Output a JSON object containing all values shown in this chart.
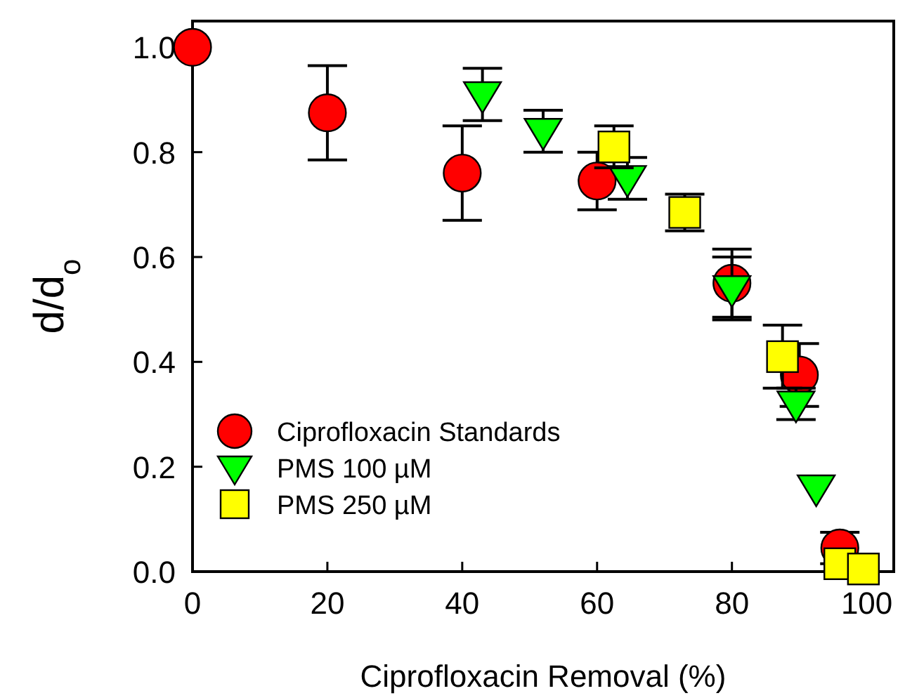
{
  "chart_data": {
    "type": "scatter",
    "xlabel": "Ciprofloxacin Removal (%)",
    "ylabel": "d/d$_{o}$",
    "xlim": [
      0,
      104
    ],
    "ylim": [
      0,
      1.05
    ],
    "xticks": [
      0,
      20,
      40,
      60,
      80,
      100
    ],
    "yticks": [
      {
        "value": 0,
        "label": "0.0"
      },
      0.2,
      0.4,
      0.6,
      0.8,
      {
        "value": 1,
        "label": "1.0"
      }
    ],
    "grid": false,
    "legend": "bottom left",
    "series": [
      {
        "name": "Ciprofloxacin Standards",
        "color": "#ff0000",
        "marker": "circle",
        "x": [
          0,
          20,
          40,
          60,
          80,
          90,
          96
        ],
        "values": [
          1.0,
          0.875,
          0.76,
          0.745,
          0.55,
          0.375,
          0.045
        ],
        "errors": [
          null,
          0.09,
          0.09,
          0.055,
          0.065,
          0.06,
          0.03
        ]
      },
      {
        "name": "PMS 100 µM",
        "color": "#00ff00",
        "marker": "triangle",
        "x": [
          43,
          52,
          64.5,
          80,
          89.5,
          92.5
        ],
        "values": [
          0.91,
          0.84,
          0.75,
          0.54,
          0.32,
          0.16
        ],
        "errors": [
          0.05,
          0.04,
          0.04,
          0.06,
          0.03,
          null
        ]
      },
      {
        "name": "PMS 250 µM",
        "color": "#ffff00",
        "marker": "square",
        "x": [
          62.5,
          73,
          87.5,
          96,
          99.5
        ],
        "values": [
          0.81,
          0.685,
          0.41,
          0.015,
          0.005
        ],
        "errors": [
          0.04,
          0.035,
          0.06,
          null,
          null
        ]
      }
    ]
  }
}
